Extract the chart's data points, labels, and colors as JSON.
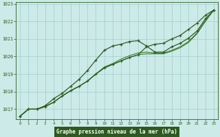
{
  "x": [
    0,
    1,
    2,
    3,
    4,
    5,
    6,
    7,
    8,
    9,
    10,
    11,
    12,
    13,
    14,
    15,
    16,
    17,
    18,
    19,
    20,
    21,
    22,
    23
  ],
  "line1": [
    1016.6,
    1017.0,
    1017.0,
    1017.2,
    1017.6,
    1017.9,
    1018.3,
    1018.7,
    1019.2,
    1019.8,
    1020.35,
    1020.6,
    1020.7,
    1020.85,
    1020.9,
    1020.6,
    1020.25,
    1020.25,
    1020.55,
    1020.75,
    1021.05,
    1021.45,
    1022.15,
    1022.65
  ],
  "line2": [
    1016.6,
    1017.0,
    1017.0,
    1017.15,
    1017.4,
    1017.75,
    1018.05,
    1018.3,
    1018.6,
    1019.0,
    1019.4,
    1019.6,
    1019.85,
    1020.05,
    1020.2,
    1020.25,
    1020.2,
    1020.2,
    1020.35,
    1020.55,
    1020.85,
    1021.35,
    1022.05,
    1022.65
  ],
  "line3": [
    1016.6,
    1017.0,
    1017.0,
    1017.15,
    1017.4,
    1017.75,
    1018.05,
    1018.3,
    1018.6,
    1019.0,
    1019.35,
    1019.55,
    1019.75,
    1019.95,
    1020.1,
    1020.15,
    1020.15,
    1020.15,
    1020.3,
    1020.5,
    1020.8,
    1021.3,
    1022.0,
    1022.65
  ],
  "line_upper": [
    1016.6,
    1017.0,
    1017.0,
    1017.15,
    1017.4,
    1017.75,
    1018.05,
    1018.3,
    1018.6,
    1019.0,
    1019.35,
    1019.55,
    1019.75,
    1019.95,
    1020.1,
    1020.55,
    1020.7,
    1020.75,
    1021.0,
    1021.2,
    1021.55,
    1021.9,
    1022.35,
    1022.65
  ],
  "dark_green": "#2d5a1e",
  "mid_green": "#3a7a28",
  "bg_color": "#cceae8",
  "grid_color": "#9ecece",
  "xlabel": "Graphe pression niveau de la mer (hPa)",
  "ylim_min": 1016.45,
  "ylim_max": 1023.1,
  "xlim_min": -0.5,
  "xlim_max": 23.5,
  "yticks": [
    1017,
    1018,
    1019,
    1020,
    1021,
    1022,
    1023
  ],
  "xlabel_bg": "#2d5a1e",
  "xlabel_fg": "#ffffff"
}
